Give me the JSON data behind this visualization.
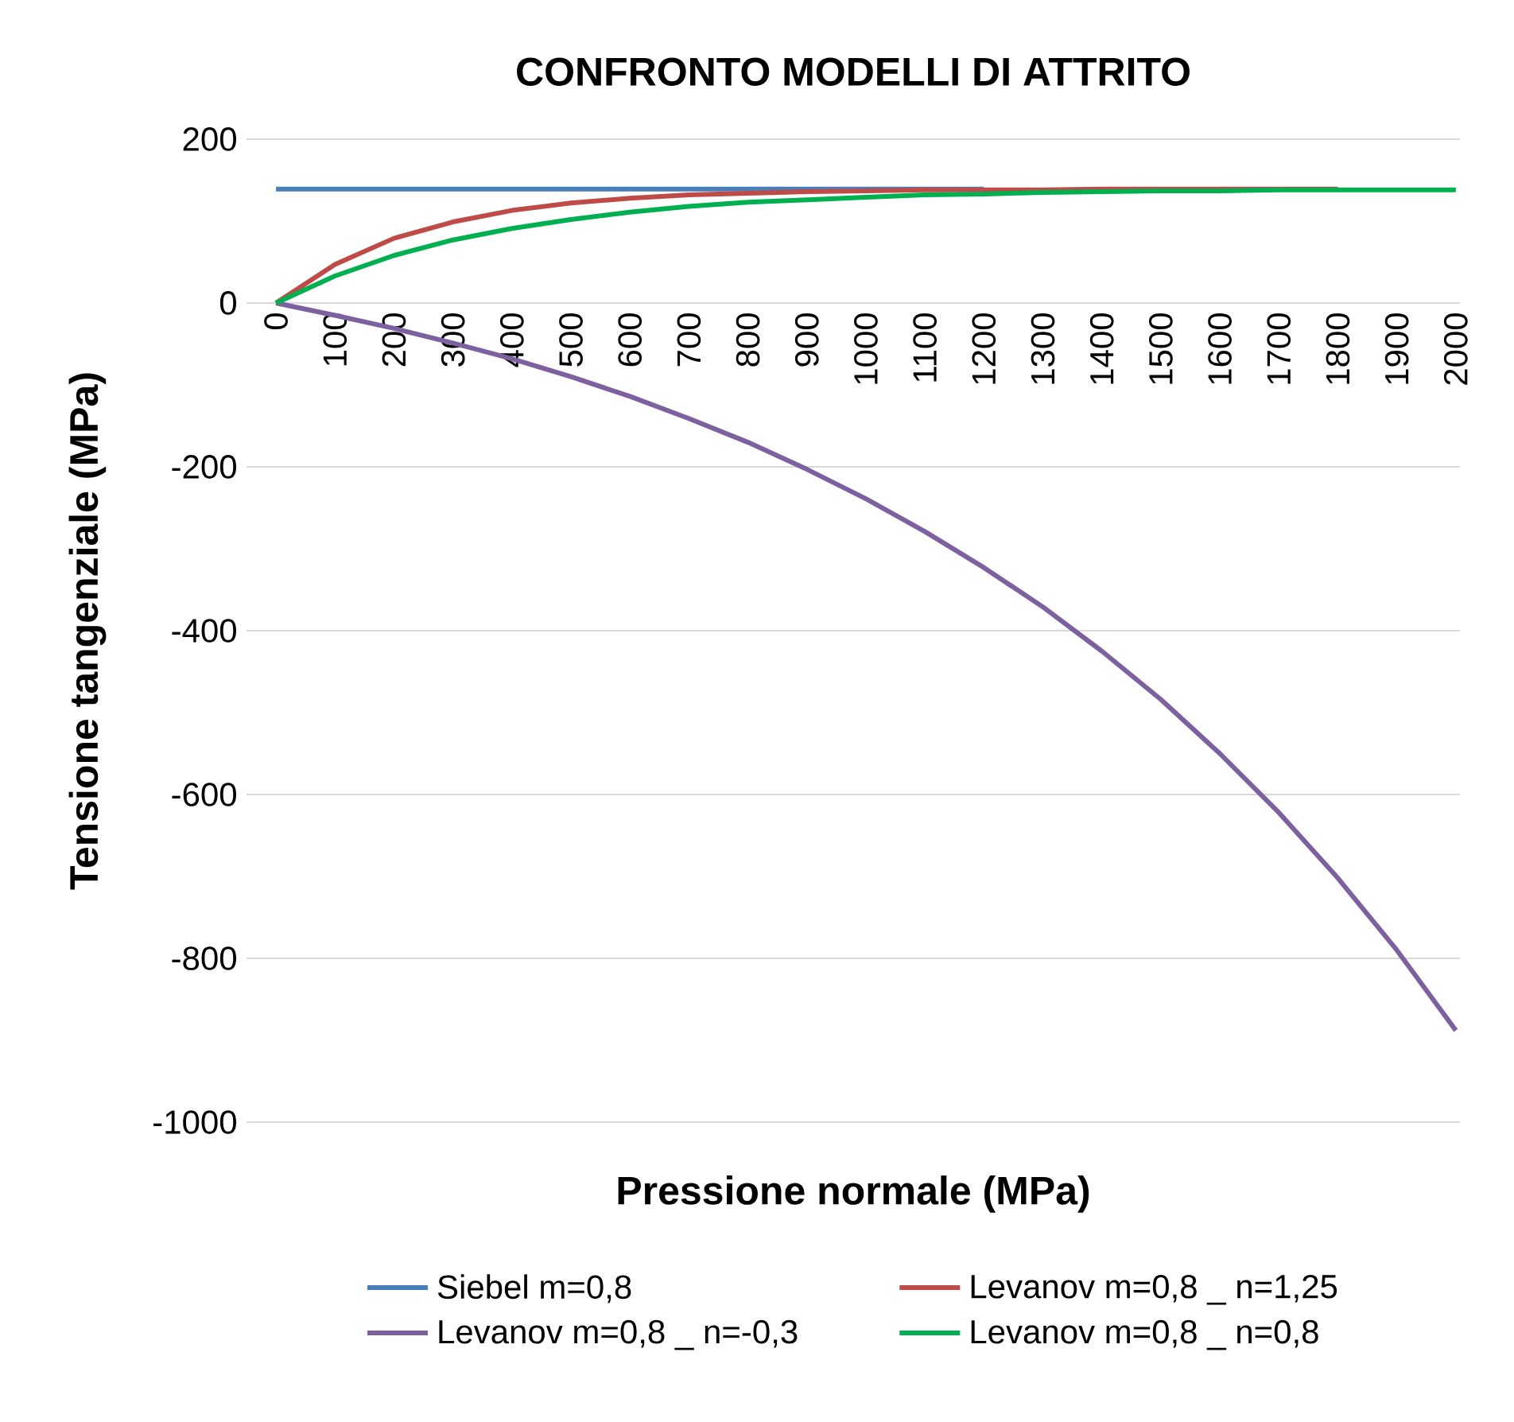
{
  "chart_data": {
    "type": "line",
    "title": "CONFRONTO MODELLI DI ATTRITO",
    "xlabel": "Pressione normale (MPa)",
    "ylabel": "Tensione tangenziale (MPa)",
    "categories": [
      "0",
      "100",
      "200",
      "300",
      "400",
      "500",
      "600",
      "700",
      "800",
      "900",
      "1000",
      "1100",
      "1200",
      "1300",
      "1400",
      "1500",
      "1600",
      "1700",
      "1800",
      "1900",
      "2000"
    ],
    "series": [
      {
        "name": "Siebel m=0,8",
        "color": "#4a7ebb",
        "values": [
          139,
          139,
          139,
          139,
          139,
          139,
          139,
          139,
          139,
          139,
          139,
          139,
          139,
          null,
          null,
          null,
          null,
          null,
          null,
          null,
          null
        ]
      },
      {
        "name": "Levanov m=0,8 _ n=1,25",
        "color": "#be4b48",
        "values": [
          0,
          47,
          79,
          99,
          113,
          122,
          128,
          132,
          134,
          136,
          137,
          138,
          138,
          138,
          139,
          139,
          139,
          139,
          139,
          null,
          null
        ]
      },
      {
        "name": "Levanov m=0,8 _ n=-0,3",
        "color": "#7d60a0",
        "values": [
          0,
          -15,
          -31,
          -49,
          -68,
          -90,
          -114,
          -141,
          -170,
          -203,
          -239,
          -279,
          -323,
          -371,
          -425,
          -484,
          -550,
          -622,
          -702,
          -790,
          -888
        ]
      },
      {
        "name": "Levanov m=0,8 _ n=0,8",
        "color": "#00b050",
        "values": [
          0,
          33,
          58,
          77,
          91,
          102,
          111,
          118,
          123,
          126,
          129,
          132,
          133,
          135,
          136,
          137,
          137,
          138,
          138,
          138,
          138
        ]
      }
    ],
    "ylim": [
      -1000,
      200
    ],
    "yticks": [
      -1000,
      -800,
      -600,
      -400,
      -200,
      0,
      200
    ],
    "grid": "y",
    "legend": "bottom",
    "marker": "none",
    "line_style": "solid"
  }
}
